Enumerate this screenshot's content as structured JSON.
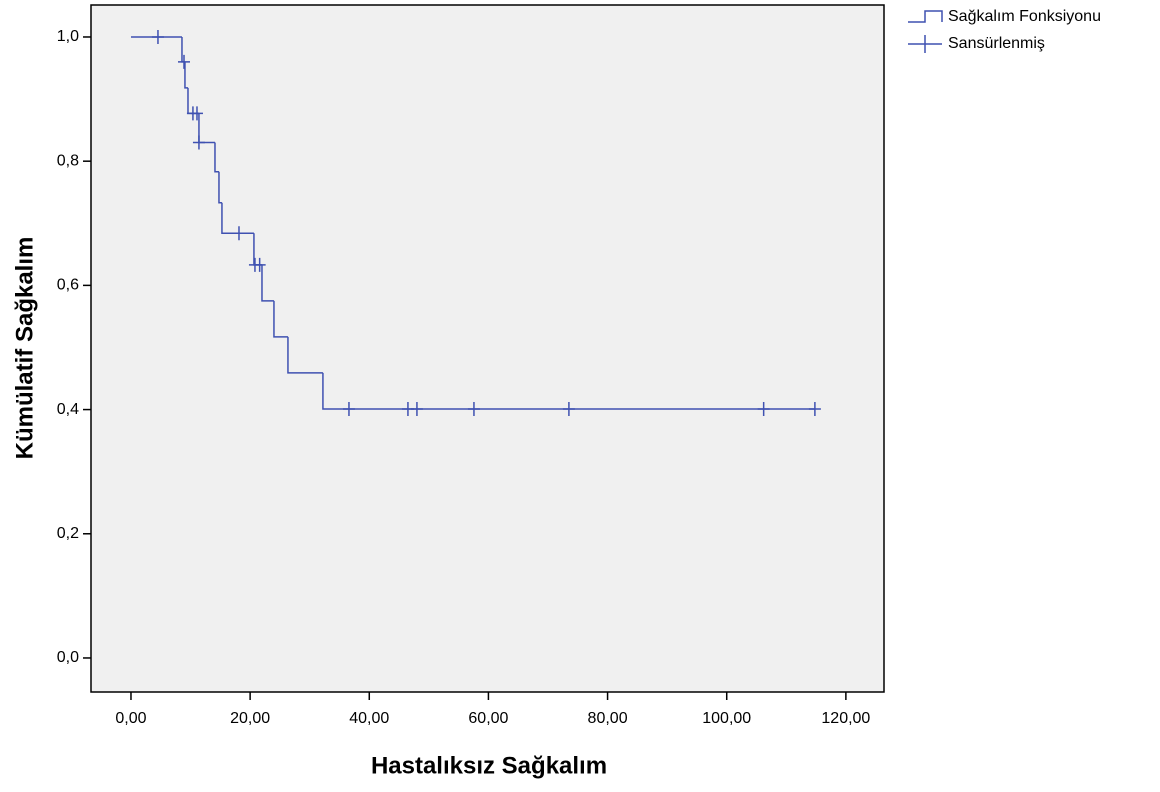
{
  "chart_data": {
    "type": "step",
    "x_label": "Hastalıksız Sağkalım",
    "y_label": "Kümülatif Sağkalım",
    "series": [
      {
        "name": "Sağkalım Fonksiyonu",
        "color": "#3f51b1",
        "x": [
          0,
          8.56,
          9.06,
          9.57,
          11.41,
          14.1,
          14.77,
          15.27,
          20.64,
          21.99,
          24.0,
          26.35,
          32.22,
          114.8
        ],
        "values": [
          1.0,
          0.96,
          0.918,
          0.877,
          0.83,
          0.783,
          0.733,
          0.684,
          0.633,
          0.575,
          0.517,
          0.459,
          0.401,
          0.401
        ]
      },
      {
        "name": "Sansürlenmiş",
        "color": "#3f51b1",
        "marker": "plus",
        "x": [
          4.53,
          8.9,
          10.4,
          11.08,
          11.41,
          18.13,
          20.81,
          21.6,
          36.59,
          46.49,
          48.0,
          57.57,
          73.51,
          106.2,
          114.8
        ],
        "values": [
          1.0,
          0.96,
          0.877,
          0.877,
          0.83,
          0.684,
          0.633,
          0.633,
          0.401,
          0.401,
          0.401,
          0.401,
          0.401,
          0.401,
          0.401
        ]
      }
    ],
    "xlim": [
      -6.71,
      126.4
    ],
    "ylim": [
      -0.0548,
      1.0515
    ],
    "xticks": [
      {
        "value": 0,
        "label": "0,00"
      },
      {
        "value": 20,
        "label": "20,00"
      },
      {
        "value": 40,
        "label": "40,00"
      },
      {
        "value": 60,
        "label": "60,00"
      },
      {
        "value": 80,
        "label": "80,00"
      },
      {
        "value": 100,
        "label": "100,00"
      },
      {
        "value": 120,
        "label": "120,00"
      }
    ],
    "yticks": [
      {
        "value": 0,
        "label": "0,0"
      },
      {
        "value": 0.2,
        "label": "0,2"
      },
      {
        "value": 0.4,
        "label": "0,4"
      },
      {
        "value": 0.6,
        "label": "0,6"
      },
      {
        "value": 0.8,
        "label": "0,8"
      },
      {
        "value": 1.0,
        "label": "1,0"
      }
    ],
    "background": "#f0f0f0",
    "legend": "top-right"
  }
}
